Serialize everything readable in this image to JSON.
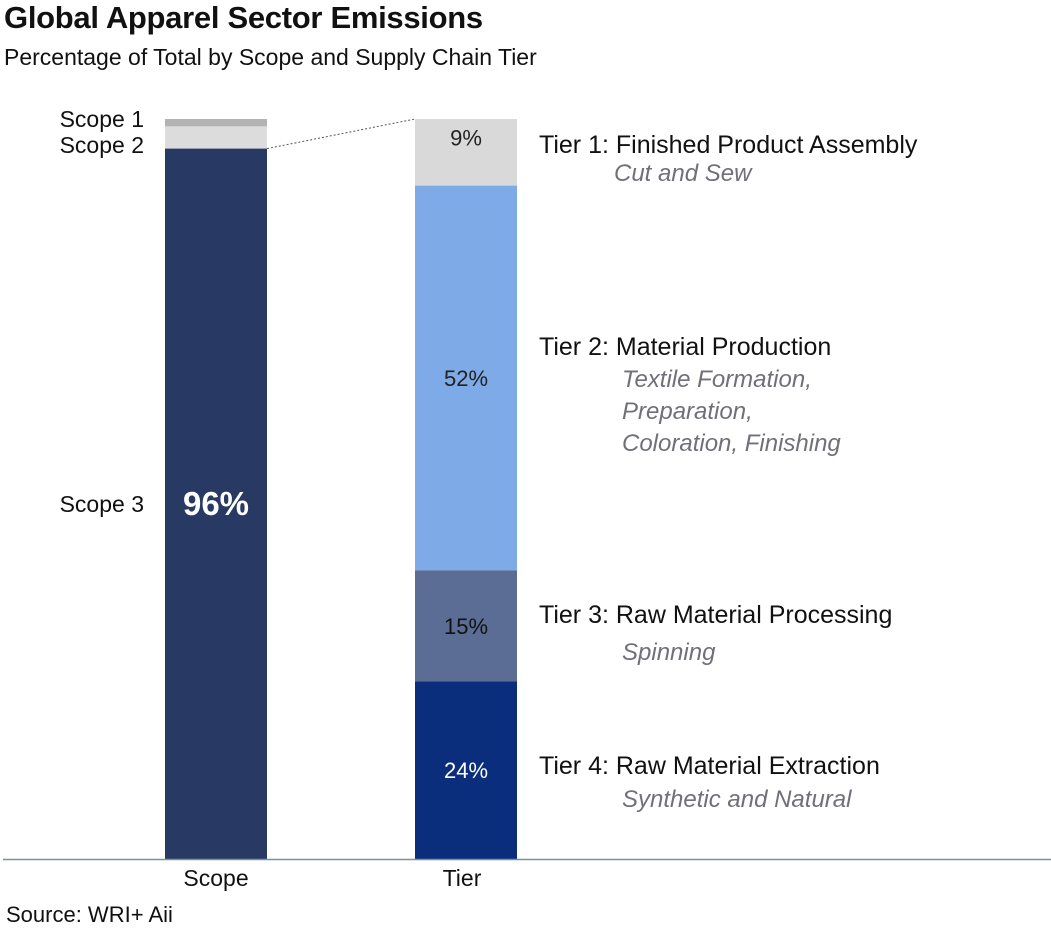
{
  "title": "Global Apparel Sector Emissions",
  "subtitle": "Percentage of Total by Scope and Supply Chain Tier",
  "source": "Source: WRI+ Aii",
  "chart_data": {
    "type": "bar",
    "stacked": true,
    "y_unit": "% of total",
    "ylim": [
      0,
      100
    ],
    "categories": [
      "Scope",
      "Tier"
    ],
    "scope_bar": {
      "category": "Scope",
      "segments": [
        {
          "name": "Scope 1",
          "value": 1,
          "color": "#b3b3b3",
          "value_label": ""
        },
        {
          "name": "Scope 2",
          "value": 3,
          "color": "#dcdcdc",
          "value_label": ""
        },
        {
          "name": "Scope 3",
          "value": 96,
          "color": "#283a63",
          "value_label": "96%"
        }
      ]
    },
    "tier_bar": {
      "category": "Tier",
      "segments": [
        {
          "name": "Tier 1: Finished Product Assembly",
          "detail": [
            "Cut and Sew"
          ],
          "value": 9,
          "color": "#d9d9d9",
          "value_label": "9%",
          "label_color": "#222222"
        },
        {
          "name": "Tier 2: Material Production",
          "detail": [
            "Textile Formation,",
            "Preparation,",
            "Coloration, Finishing"
          ],
          "value": 52,
          "color": "#7eaae8",
          "value_label": "52%",
          "label_color": "#222222"
        },
        {
          "name": "Tier 3: Raw Material Processing",
          "detail": [
            "Spinning"
          ],
          "value": 15,
          "color": "#5b6d94",
          "value_label": "15%",
          "label_color": "#111111"
        },
        {
          "name": "Tier 4: Raw Material Extraction",
          "detail": [
            "Synthetic and Natural"
          ],
          "value": 24,
          "color": "#0a2d7c",
          "value_label": "24%",
          "label_color": "#ffffff"
        }
      ]
    },
    "axis_color": "#7d8ea8",
    "connector_color": "#555555"
  }
}
